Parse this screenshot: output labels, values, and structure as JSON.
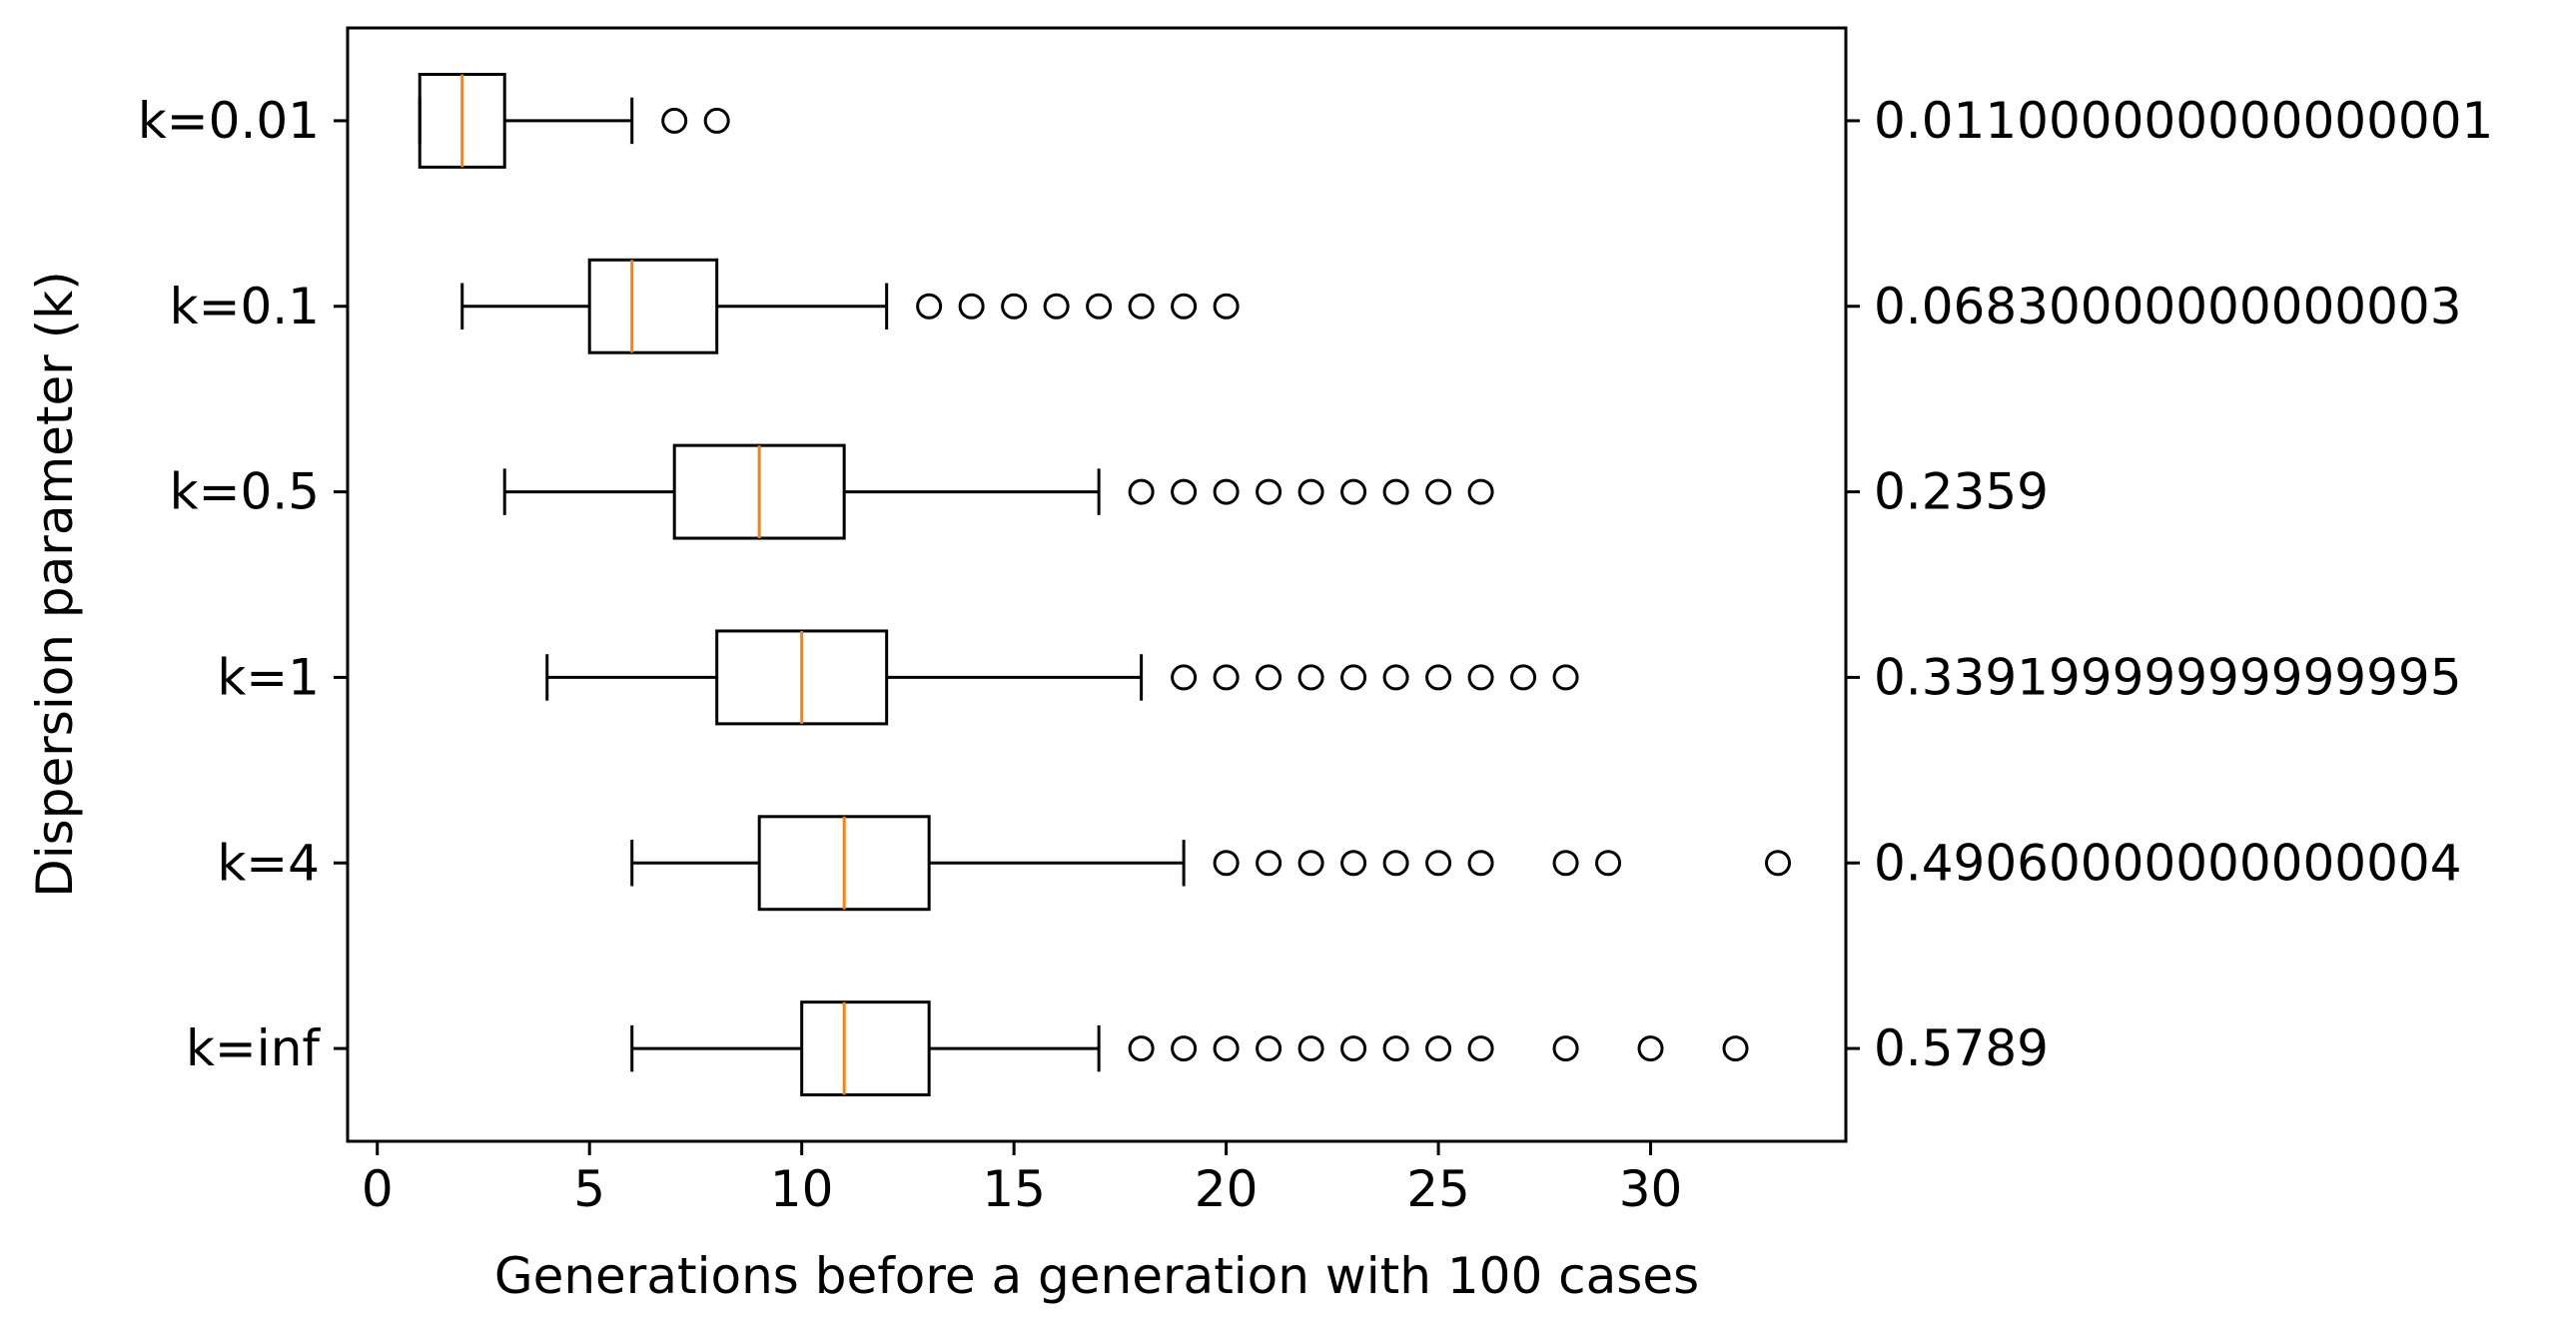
{
  "chart_data": {
    "type": "boxplot",
    "orientation": "horizontal",
    "title": "",
    "xlabel": "Generations before a generation with 100 cases",
    "ylabel": "Dispersion parameter (k)",
    "xlim": [
      -0.7,
      34.6
    ],
    "xticks": [
      0,
      5,
      10,
      15,
      20,
      25,
      30
    ],
    "grid": false,
    "colors": {
      "box": "#000000",
      "median": "#ff7f0e"
    },
    "categories": [
      "k=0.01",
      "k=0.1",
      "k=0.5",
      "k=1",
      "k=4",
      "k=inf"
    ],
    "right_labels": [
      "0.011000000000000001",
      "0.06830000000000003",
      "0.2359",
      "0.33919999999999995",
      "0.49060000000000004",
      "0.5789"
    ],
    "boxes": [
      {
        "label": "k=0.01",
        "whislo": 1,
        "q1": 1,
        "med": 2,
        "q3": 3,
        "whishi": 6,
        "fliers": [
          7,
          8
        ]
      },
      {
        "label": "k=0.1",
        "whislo": 2,
        "q1": 5,
        "med": 6,
        "q3": 8,
        "whishi": 12,
        "fliers": [
          13,
          14,
          15,
          16,
          17,
          18,
          19,
          20
        ]
      },
      {
        "label": "k=0.5",
        "whislo": 3,
        "q1": 7,
        "med": 9,
        "q3": 11,
        "whishi": 17,
        "fliers": [
          18,
          19,
          20,
          21,
          22,
          23,
          24,
          25,
          26
        ]
      },
      {
        "label": "k=1",
        "whislo": 4,
        "q1": 8,
        "med": 10,
        "q3": 12,
        "whishi": 18,
        "fliers": [
          19,
          20,
          21,
          22,
          23,
          24,
          25,
          26,
          27,
          28
        ]
      },
      {
        "label": "k=4",
        "whislo": 6,
        "q1": 9,
        "med": 11,
        "q3": 13,
        "whishi": 19,
        "fliers": [
          20,
          21,
          22,
          23,
          24,
          25,
          26,
          28,
          29,
          33
        ]
      },
      {
        "label": "k=inf",
        "whislo": 6,
        "q1": 10,
        "med": 11,
        "q3": 13,
        "whishi": 17,
        "fliers": [
          18,
          19,
          20,
          21,
          22,
          23,
          24,
          25,
          26,
          28,
          30,
          32
        ]
      }
    ]
  }
}
